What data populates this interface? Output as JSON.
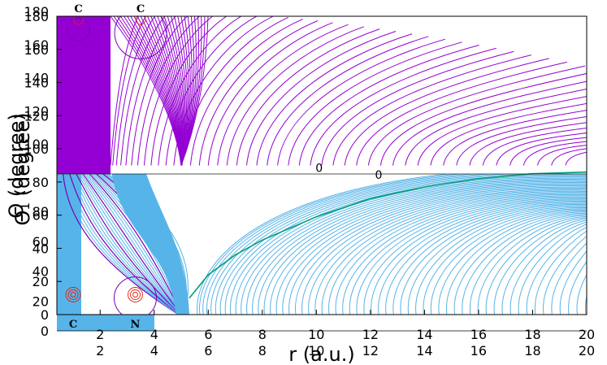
{
  "chart_data": {
    "type": "line",
    "title": "",
    "xlabel": "r (a.u.)",
    "ylabel": "Θ (degree)",
    "ylabel_overlay": "Θ₁ (degree)",
    "xlim": [
      0.4,
      20
    ],
    "ylim": [
      0,
      180
    ],
    "x_ticks": [
      "2",
      "4",
      "6",
      "8",
      "10",
      "12",
      "14",
      "16",
      "18",
      "20"
    ],
    "x_ticks_upper": [
      "2",
      "4",
      "6",
      "8",
      "10",
      "12",
      "14",
      "16",
      "18",
      "20"
    ],
    "y_ticks": [
      "0",
      "20",
      "40",
      "60",
      "80",
      "100",
      "120",
      "140",
      "160",
      "180"
    ],
    "y_ticks_lower": [
      "0",
      "20",
      "40",
      "60",
      "80"
    ],
    "y_ticks_upper": [
      "100",
      "120",
      "140",
      "160",
      "180"
    ],
    "grid": false,
    "legend": "none",
    "colors": {
      "upper_lines": "#9400d3",
      "lower_lines": "#56b4e9",
      "separatrix": "#009e73",
      "atom_orbit": "#e51e10"
    },
    "separatrix": {
      "x": [
        5.3,
        6,
        7,
        8,
        10,
        12,
        14,
        16,
        18,
        20
      ],
      "y": [
        10,
        24,
        36,
        45,
        59,
        70,
        77,
        82,
        85,
        86
      ]
    },
    "contour_labels": [
      {
        "text": "0",
        "x": 10.1,
        "y": 86
      },
      {
        "text": "0",
        "x": 12.3,
        "y": 82
      }
    ],
    "boundary_y": 90,
    "atoms_top": [
      {
        "label": "C",
        "x": 1.2
      },
      {
        "label": "C",
        "x": 3.5
      }
    ],
    "atoms_bottom": [
      {
        "label": "C",
        "x": 1.0
      },
      {
        "label": "N",
        "x": 3.3
      }
    ],
    "cores_bottom": [
      {
        "x": 1.0,
        "y": 12
      },
      {
        "x": 3.3,
        "y": 12
      }
    ]
  }
}
